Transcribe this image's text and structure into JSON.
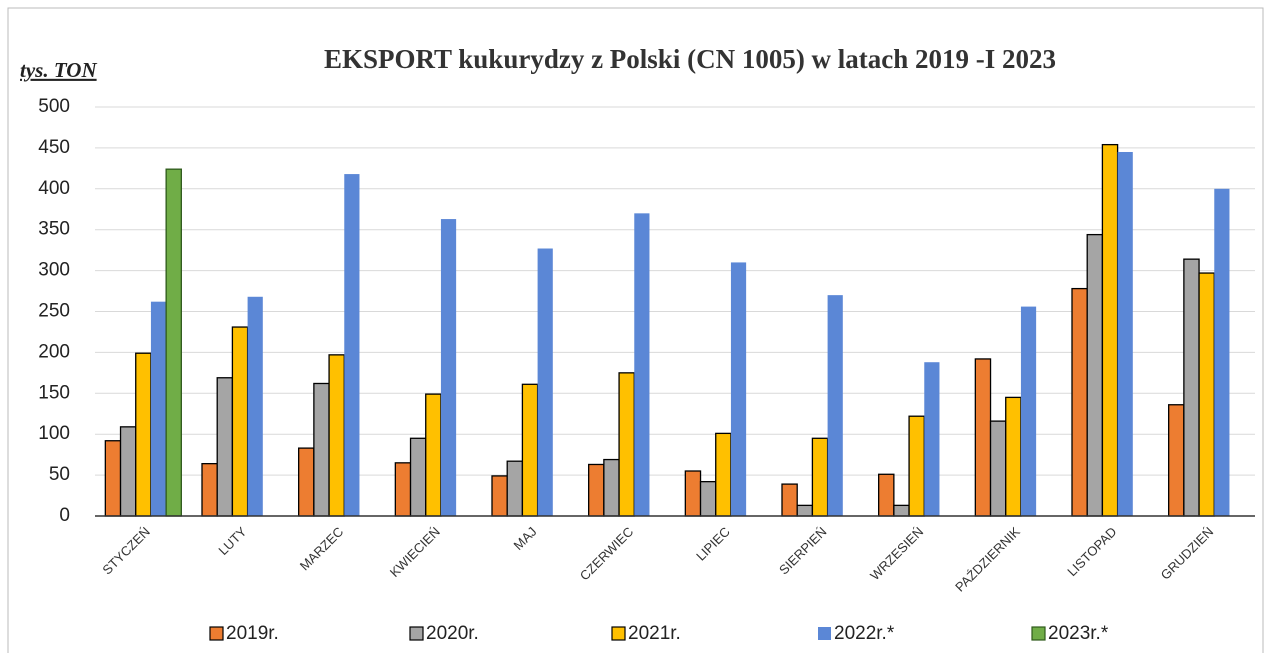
{
  "chart_data": {
    "type": "bar",
    "title": "EKSPORT kukurydzy z Polski (CN 1005) w latach 2019  -I 2023",
    "y_label": "tys. TON",
    "categories": [
      "STYCZEŃ",
      "LUTY",
      "MARZEC",
      "KWIECIEŃ",
      "MAJ",
      "CZERWIEC",
      "LIPIEC",
      "SIERPIEŃ",
      "WRZESIEŃ",
      "PAŹDZIERNIK",
      "LISTOPAD",
      "GRUDZIEŃ"
    ],
    "series": [
      {
        "name": "2019r.",
        "color": "#ed7d31",
        "edgecolor": "#000000",
        "values": [
          92,
          64,
          83,
          65,
          49,
          63,
          55,
          39,
          51,
          192,
          278,
          136
        ]
      },
      {
        "name": "2020r.",
        "color": "#a5a5a5",
        "edgecolor": "#000000",
        "values": [
          109,
          169,
          162,
          95,
          67,
          69,
          42,
          13,
          13,
          116,
          344,
          314
        ]
      },
      {
        "name": "2021r.",
        "color": "#ffc000",
        "edgecolor": "#000000",
        "values": [
          199,
          231,
          197,
          149,
          161,
          175,
          101,
          95,
          122,
          145,
          454,
          297
        ]
      },
      {
        "name": "2022r.*",
        "color": "#5b87d6",
        "values": [
          262,
          268,
          418,
          363,
          327,
          370,
          310,
          270,
          188,
          256,
          445,
          400
        ]
      },
      {
        "name": "2023r.*",
        "color": "#70ad47",
        "edgecolor": "#2f5a1c",
        "values": [
          424,
          null,
          null,
          null,
          null,
          null,
          null,
          null,
          null,
          null,
          null,
          null
        ]
      }
    ],
    "ylim": [
      0,
      500
    ],
    "yticks": [
      0,
      50,
      100,
      150,
      200,
      250,
      300,
      350,
      400,
      450,
      500
    ],
    "grid": true,
    "legend": "bottom"
  }
}
